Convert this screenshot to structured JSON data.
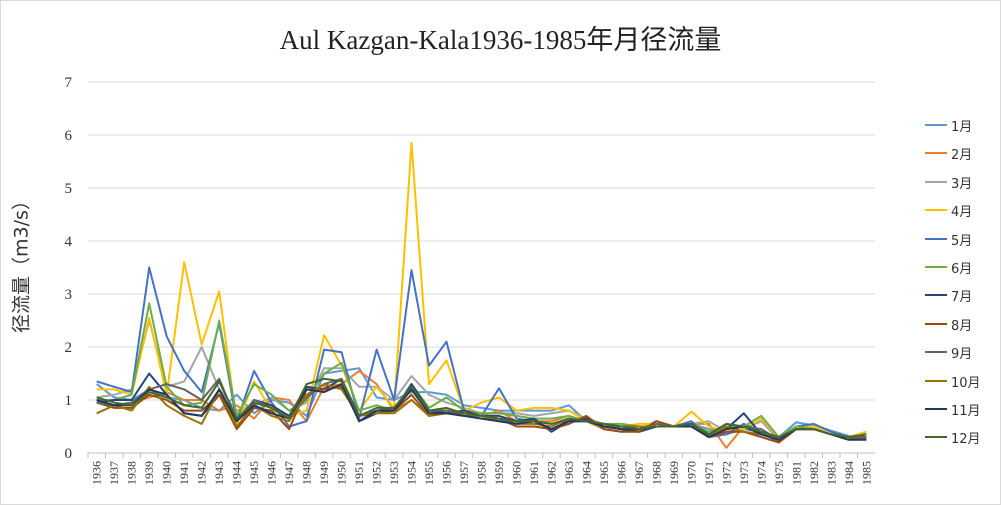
{
  "chart_data": {
    "type": "line",
    "title": "Aul Kazgan-Kala1936-1985年月径流量",
    "xlabel": "",
    "ylabel": "径流量（m3/s）",
    "ylim": [
      0,
      7
    ],
    "yticks": [
      0,
      1,
      2,
      3,
      4,
      5,
      6,
      7
    ],
    "grid": true,
    "legend_position": "right",
    "x": [
      "1936",
      "1937",
      "1938",
      "1939",
      "1940",
      "1941",
      "1942",
      "1943",
      "1944",
      "1945",
      "1946",
      "1947",
      "1948",
      "1949",
      "1950",
      "1951",
      "1952",
      "1953",
      "1954",
      "1955",
      "1956",
      "1957",
      "1958",
      "1959",
      "1960",
      "1961",
      "1962",
      "1963",
      "1964",
      "1965",
      "1966",
      "1967",
      "1968",
      "1969",
      "1970",
      "1971",
      "1972",
      "1973",
      "1974",
      "1975",
      "1981",
      "1982",
      "1983",
      "1984",
      "1985"
    ],
    "series": [
      {
        "name": "1月",
        "color": "#5b9bd5",
        "values": [
          1.3,
          1.05,
          1.0,
          1.2,
          1.05,
          1.0,
          0.85,
          0.8,
          1.1,
          0.75,
          1.0,
          0.95,
          0.7,
          1.5,
          1.55,
          1.6,
          1.05,
          1.0,
          1.15,
          1.15,
          1.1,
          0.9,
          0.85,
          0.8,
          0.8,
          0.8,
          0.8,
          0.9,
          0.6,
          0.55,
          0.5,
          0.5,
          0.5,
          0.5,
          0.55,
          0.45,
          0.35,
          0.45,
          0.4,
          0.3,
          0.58,
          0.52,
          0.42,
          0.32,
          0.28
        ]
      },
      {
        "name": "2月",
        "color": "#ed7d31",
        "values": [
          1.0,
          0.9,
          0.95,
          1.05,
          1.15,
          1.0,
          1.0,
          0.8,
          0.9,
          0.65,
          1.05,
          1.0,
          0.6,
          1.25,
          1.3,
          1.55,
          1.3,
          0.8,
          1.0,
          0.7,
          0.8,
          0.7,
          0.7,
          0.8,
          0.6,
          0.6,
          0.6,
          0.7,
          0.6,
          0.45,
          0.4,
          0.45,
          0.6,
          0.5,
          0.55,
          0.55,
          0.1,
          0.5,
          0.4,
          0.2,
          0.45,
          0.45,
          0.35,
          0.3,
          0.4
        ]
      },
      {
        "name": "3月",
        "color": "#a5a5a5",
        "values": [
          1.05,
          1.1,
          1.2,
          2.5,
          1.25,
          1.35,
          2.0,
          1.2,
          0.8,
          0.9,
          1.05,
          0.8,
          0.95,
          1.6,
          1.6,
          1.25,
          1.25,
          1.0,
          1.45,
          1.1,
          0.95,
          0.85,
          0.75,
          0.75,
          0.75,
          0.7,
          0.75,
          0.8,
          0.65,
          0.55,
          0.5,
          0.5,
          0.5,
          0.5,
          0.55,
          0.6,
          0.4,
          0.45,
          0.6,
          0.25,
          0.45,
          0.5,
          0.4,
          0.3,
          0.35
        ]
      },
      {
        "name": "4月",
        "color": "#ffc000",
        "values": [
          1.2,
          1.2,
          1.1,
          2.55,
          1.1,
          3.6,
          2.05,
          3.05,
          0.55,
          1.35,
          0.8,
          0.7,
          0.8,
          2.22,
          1.65,
          0.8,
          1.25,
          0.85,
          5.85,
          1.3,
          1.75,
          0.8,
          0.95,
          1.05,
          0.8,
          0.85,
          0.85,
          0.8,
          0.6,
          0.5,
          0.5,
          0.55,
          0.55,
          0.5,
          0.78,
          0.5,
          0.4,
          0.45,
          0.65,
          0.3,
          0.5,
          0.5,
          0.4,
          0.3,
          0.4
        ]
      },
      {
        "name": "5月",
        "color": "#4472c4",
        "values": [
          1.35,
          1.25,
          1.15,
          3.5,
          2.2,
          1.55,
          1.15,
          2.45,
          0.6,
          1.55,
          0.95,
          0.5,
          0.6,
          1.95,
          1.9,
          0.65,
          1.95,
          1.0,
          3.45,
          1.65,
          2.1,
          0.8,
          0.7,
          1.22,
          0.65,
          0.6,
          0.45,
          0.6,
          0.65,
          0.5,
          0.45,
          0.4,
          0.5,
          0.5,
          0.6,
          0.3,
          0.35,
          0.55,
          0.4,
          0.2,
          0.5,
          0.55,
          0.4,
          0.3,
          0.25
        ]
      },
      {
        "name": "6月",
        "color": "#70ad47",
        "values": [
          1.0,
          1.0,
          1.1,
          2.82,
          1.25,
          0.9,
          0.95,
          2.5,
          0.7,
          1.3,
          1.1,
          0.8,
          1.0,
          1.5,
          1.7,
          0.8,
          0.9,
          0.8,
          1.3,
          0.85,
          1.05,
          0.8,
          0.75,
          0.75,
          0.7,
          0.65,
          0.65,
          0.7,
          0.6,
          0.55,
          0.55,
          0.5,
          0.5,
          0.5,
          0.55,
          0.4,
          0.5,
          0.5,
          0.7,
          0.3,
          0.5,
          0.45,
          0.35,
          0.3,
          0.3
        ]
      },
      {
        "name": "7月",
        "color": "#264478",
        "values": [
          0.95,
          1.0,
          1.0,
          1.5,
          1.1,
          0.75,
          0.7,
          1.1,
          0.6,
          1.0,
          0.9,
          0.7,
          1.25,
          1.2,
          1.4,
          0.6,
          0.75,
          0.8,
          1.3,
          0.8,
          0.75,
          0.8,
          0.7,
          0.7,
          0.6,
          0.65,
          0.4,
          0.6,
          0.65,
          0.5,
          0.45,
          0.4,
          0.5,
          0.5,
          0.55,
          0.35,
          0.45,
          0.75,
          0.35,
          0.25,
          0.45,
          0.45,
          0.35,
          0.3,
          0.3
        ]
      },
      {
        "name": "8月",
        "color": "#9e480e",
        "values": [
          0.95,
          0.85,
          0.85,
          1.1,
          1.0,
          0.8,
          0.8,
          1.1,
          0.45,
          0.85,
          0.8,
          0.45,
          1.2,
          1.2,
          1.25,
          0.7,
          0.75,
          0.8,
          1.1,
          0.7,
          0.75,
          0.75,
          0.7,
          0.65,
          0.5,
          0.5,
          0.45,
          0.55,
          0.7,
          0.45,
          0.4,
          0.4,
          0.6,
          0.5,
          0.5,
          0.3,
          0.4,
          0.4,
          0.3,
          0.2,
          0.45,
          0.45,
          0.35,
          0.25,
          0.3
        ]
      },
      {
        "name": "9月",
        "color": "#636363",
        "values": [
          0.95,
          0.9,
          0.95,
          1.2,
          1.3,
          1.2,
          1.0,
          1.4,
          0.6,
          1.0,
          0.85,
          0.65,
          1.05,
          1.3,
          1.4,
          0.7,
          0.8,
          0.85,
          1.25,
          0.8,
          0.8,
          0.75,
          0.7,
          0.65,
          0.55,
          0.6,
          0.55,
          0.6,
          0.6,
          0.5,
          0.5,
          0.45,
          0.55,
          0.5,
          0.55,
          0.35,
          0.45,
          0.5,
          0.45,
          0.25,
          0.45,
          0.45,
          0.35,
          0.3,
          0.3
        ]
      },
      {
        "name": "10月",
        "color": "#997300",
        "values": [
          0.75,
          0.9,
          0.8,
          1.25,
          0.9,
          0.7,
          0.55,
          1.2,
          0.5,
          0.9,
          0.7,
          0.6,
          1.1,
          1.3,
          1.2,
          0.7,
          0.75,
          0.75,
          1.0,
          0.7,
          0.75,
          0.7,
          0.7,
          0.6,
          0.55,
          0.55,
          0.5,
          0.65,
          0.6,
          0.5,
          0.5,
          0.5,
          0.5,
          0.5,
          0.5,
          0.3,
          0.5,
          0.4,
          0.35,
          0.3,
          0.45,
          0.45,
          0.35,
          0.3,
          0.35
        ]
      },
      {
        "name": "11月",
        "color": "#1f3864",
        "values": [
          1.0,
          0.9,
          0.9,
          1.2,
          1.1,
          0.75,
          0.7,
          1.2,
          0.6,
          0.9,
          0.75,
          0.65,
          1.2,
          1.15,
          1.3,
          0.6,
          0.8,
          0.8,
          1.2,
          0.75,
          0.75,
          0.7,
          0.65,
          0.6,
          0.55,
          0.6,
          0.45,
          0.6,
          0.6,
          0.5,
          0.45,
          0.45,
          0.5,
          0.5,
          0.5,
          0.3,
          0.45,
          0.5,
          0.35,
          0.25,
          0.45,
          0.45,
          0.35,
          0.25,
          0.25
        ]
      },
      {
        "name": "12月",
        "color": "#43682b",
        "values": [
          1.05,
          0.95,
          0.9,
          1.15,
          1.05,
          0.9,
          0.85,
          1.35,
          0.65,
          0.95,
          0.85,
          0.65,
          1.3,
          1.4,
          1.35,
          0.7,
          0.85,
          0.85,
          1.25,
          0.8,
          0.85,
          0.75,
          0.7,
          0.65,
          0.6,
          0.6,
          0.55,
          0.65,
          0.6,
          0.55,
          0.5,
          0.45,
          0.5,
          0.5,
          0.55,
          0.35,
          0.55,
          0.5,
          0.4,
          0.3,
          0.45,
          0.45,
          0.35,
          0.3,
          0.35
        ]
      }
    ]
  }
}
